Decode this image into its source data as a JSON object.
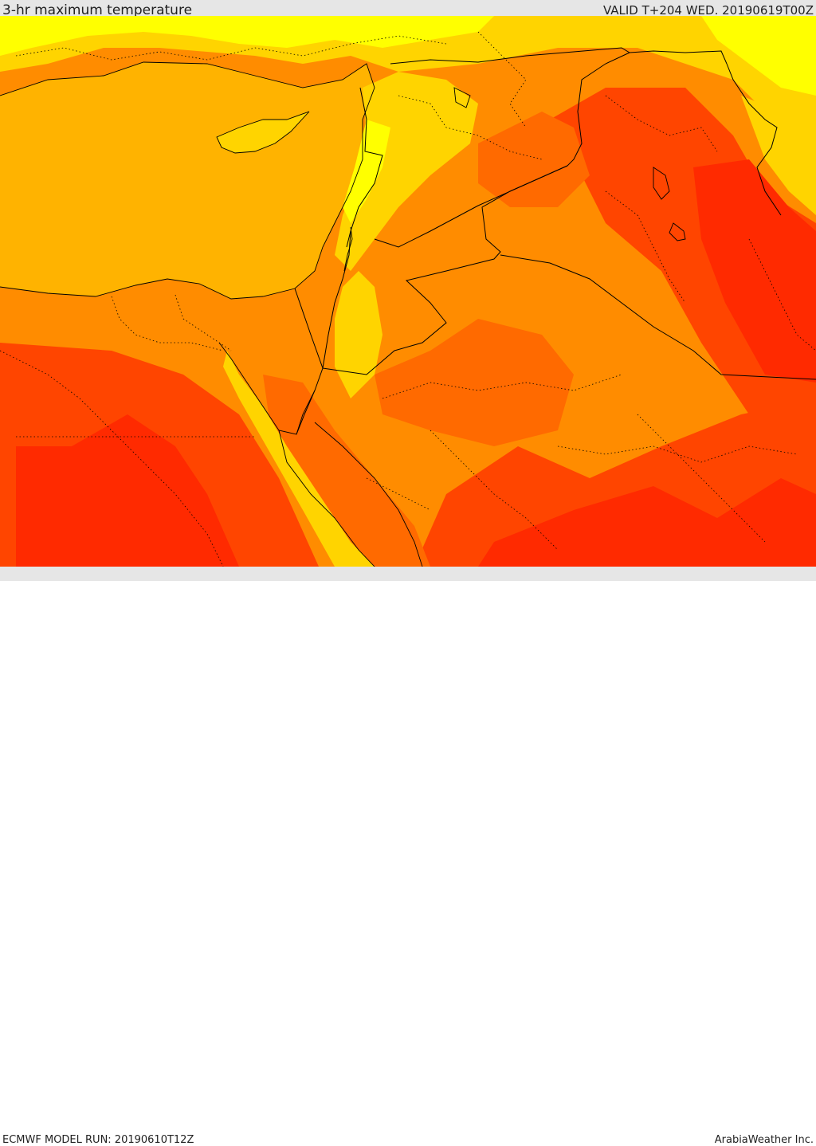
{
  "header": {
    "title": "3-hr maximum temperature",
    "valid": "VALID T+204 WED. 20190619T00Z"
  },
  "footer": {
    "model_run": "ECMWF MODEL RUN: 20190610T12Z",
    "brand": "ArabiaWeather Inc."
  },
  "map": {
    "palette": {
      "sea": "#ffb300",
      "yellow": "#ffff00",
      "yellow_orange": "#ffd400",
      "orange": "#ff8c00",
      "dark_orange": "#ff6a00",
      "red_orange": "#ff4500",
      "red": "#ff2a00",
      "border": "#000000"
    }
  }
}
